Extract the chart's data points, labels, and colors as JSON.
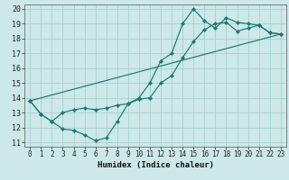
{
  "title": "",
  "xlabel": "Humidex (Indice chaleur)",
  "bg_color": "#cce8e8",
  "grid_color": "#aacfcf",
  "line_color": "#1a7a6e",
  "xlim": [
    -0.5,
    23.5
  ],
  "ylim": [
    10.7,
    20.3
  ],
  "xticks": [
    0,
    1,
    2,
    3,
    4,
    5,
    6,
    7,
    8,
    9,
    10,
    11,
    12,
    13,
    14,
    15,
    16,
    17,
    18,
    19,
    20,
    21,
    22,
    23
  ],
  "yticks": [
    11,
    12,
    13,
    14,
    15,
    16,
    17,
    18,
    19,
    20
  ],
  "line1_x": [
    0,
    1,
    2,
    3,
    4,
    5,
    6,
    7,
    8,
    9,
    10,
    11,
    12,
    13,
    14,
    15,
    16,
    17,
    18,
    19,
    20,
    21,
    22,
    23
  ],
  "line1_y": [
    13.8,
    12.9,
    12.4,
    11.9,
    11.8,
    11.5,
    11.1,
    11.3,
    12.4,
    13.6,
    13.9,
    14.0,
    15.0,
    15.5,
    16.7,
    17.8,
    18.6,
    19.0,
    19.1,
    18.5,
    18.7,
    18.9,
    18.4,
    18.3
  ],
  "line2_x": [
    0,
    1,
    2,
    3,
    4,
    5,
    6,
    7,
    8,
    9,
    10,
    11,
    12,
    13,
    14,
    15,
    16,
    17,
    18,
    19,
    20,
    21,
    22,
    23
  ],
  "line2_y": [
    13.8,
    12.9,
    12.4,
    13.0,
    13.2,
    13.3,
    13.2,
    13.3,
    13.5,
    13.6,
    14.0,
    15.0,
    16.5,
    17.0,
    19.0,
    20.0,
    19.2,
    18.7,
    19.4,
    19.1,
    19.0,
    18.9,
    18.4,
    18.3
  ],
  "line3_x": [
    0,
    23
  ],
  "line3_y": [
    13.8,
    18.3
  ],
  "tick_fontsize": 5.5,
  "xlabel_fontsize": 6.5,
  "marker_size": 2.2,
  "line_width": 0.85
}
